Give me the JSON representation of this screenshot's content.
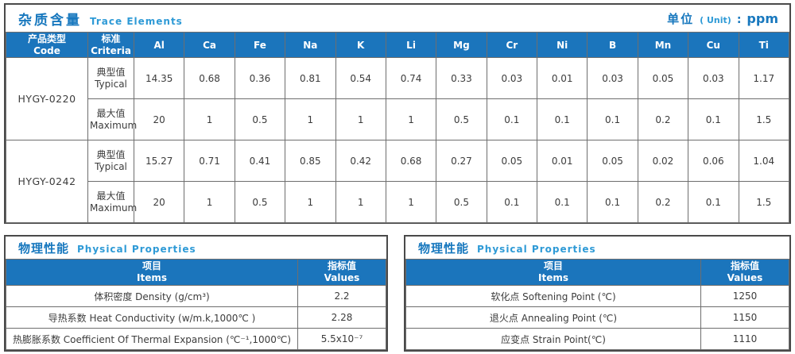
{
  "colors": {
    "header_blue": "#1B75BC",
    "title_blue": "#1878BE",
    "title_en_blue": "#2E9AD6"
  },
  "trace": {
    "title_zh": "杂质含量",
    "title_en": "Trace Elements",
    "unit": {
      "zh": "单位",
      "paren": "( Unit)",
      "colon": ":",
      "value": "ppm"
    },
    "headers": {
      "code": {
        "zh": "产品类型",
        "en": "Code"
      },
      "criteria": {
        "zh": "标准",
        "en": "Criteria"
      }
    },
    "elements": [
      "Al",
      "Ca",
      "Fe",
      "Na",
      "K",
      "Li",
      "Mg",
      "Cr",
      "Ni",
      "B",
      "Mn",
      "Cu",
      "Ti"
    ],
    "row_labels": {
      "typical": {
        "zh": "典型值",
        "en": "Typical"
      },
      "maximum": {
        "zh": "最大值",
        "en": "Maximum"
      }
    },
    "products": [
      {
        "code": "HYGY-0220",
        "typical": [
          "14.35",
          "0.68",
          "0.36",
          "0.81",
          "0.54",
          "0.74",
          "0.33",
          "0.03",
          "0.01",
          "0.03",
          "0.05",
          "0.03",
          "1.17"
        ],
        "maximum": [
          "20",
          "1",
          "0.5",
          "1",
          "1",
          "1",
          "0.5",
          "0.1",
          "0.1",
          "0.1",
          "0.2",
          "0.1",
          "1.5"
        ]
      },
      {
        "code": "HYGY-0242",
        "typical": [
          "15.27",
          "0.71",
          "0.41",
          "0.85",
          "0.42",
          "0.68",
          "0.27",
          "0.05",
          "0.01",
          "0.05",
          "0.02",
          "0.06",
          "1.04"
        ],
        "maximum": [
          "20",
          "1",
          "0.5",
          "1",
          "1",
          "1",
          "0.5",
          "0.1",
          "0.1",
          "0.1",
          "0.2",
          "0.1",
          "1.5"
        ]
      }
    ]
  },
  "physical_left": {
    "title_zh": "物理性能",
    "title_en": "Physical Properties",
    "headers": {
      "items": {
        "zh": "项目",
        "en": "Items"
      },
      "values": {
        "zh": "指标值",
        "en": "Values"
      }
    },
    "rows": [
      {
        "item": "体积密度 Density (g/cm³)",
        "value": "2.2"
      },
      {
        "item": "导热系数 Heat Conductivity (w/m.k,1000℃ )",
        "value": "2.28"
      },
      {
        "item": "热膨胀系数 Coefficient Of Thermal Expansion (℃⁻¹,1000℃)",
        "value": "5.5x10⁻⁷"
      }
    ]
  },
  "physical_right": {
    "title_zh": "物理性能",
    "title_en": "Physical Properties",
    "headers": {
      "items": {
        "zh": "项目",
        "en": "Items"
      },
      "values": {
        "zh": "指标值",
        "en": "Values"
      }
    },
    "rows": [
      {
        "item": "软化点 Softening Point (℃)",
        "value": "1250"
      },
      {
        "item": "退火点 Annealing Point (℃)",
        "value": "1150"
      },
      {
        "item": "应变点 Strain Point(℃)",
        "value": "1110"
      }
    ]
  }
}
